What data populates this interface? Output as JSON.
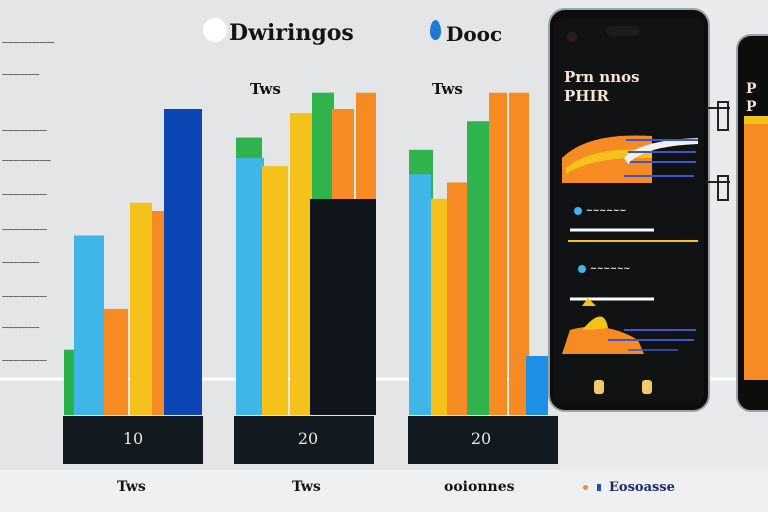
{
  "header": {
    "title_left": "Dwiringos",
    "title_right": "Dooc"
  },
  "gridline_labels": [
    "~~~~~~~~~~~~~~",
    "~~~~~~~~~~",
    "~~~~~~~~~~~~",
    "~~~~~~~~~~~~~",
    "~~~~~~~~~~~~",
    "~~~~~~~~~~~~",
    "~~~~~~~~~~",
    "~~~~~~~~~~~~",
    "~~~~~~~~~~",
    "~~~~~~~~~~~~"
  ],
  "bar_groups": [
    {
      "top_label": "",
      "base_value": "10",
      "bottom_label": "Tws",
      "bars": [
        {
          "color": "#27b24a",
          "value": 32
        },
        {
          "color": "#3fb5e8",
          "value": 88
        },
        {
          "color": "#f58b22",
          "value": 52
        },
        {
          "color": "#2fb34d",
          "value": 48
        },
        {
          "color": "#f5c21b",
          "value": 104
        },
        {
          "color": "#f58b22",
          "value": 100
        },
        {
          "color": "#0c46b5",
          "value": 150
        }
      ]
    },
    {
      "top_label": "Tws",
      "base_value": "20",
      "bottom_label": "Tws",
      "bars": [
        {
          "color": "#2fb34d",
          "value": 136
        },
        {
          "color": "#3fb5e8",
          "value": 126
        },
        {
          "color": "#f5c21b",
          "value": 122
        },
        {
          "color": "#f5c21b",
          "value": 148
        },
        {
          "color": "#2fb34d",
          "value": 158
        },
        {
          "color": "#f58b22",
          "value": 150
        },
        {
          "color": "#f58b22",
          "value": 158
        }
      ]
    },
    {
      "top_label": "Tws",
      "base_value": "20",
      "bottom_label": "ooionnes",
      "bars": [
        {
          "color": "#2fb34d",
          "value": 130
        },
        {
          "color": "#3fb5e8",
          "value": 118
        },
        {
          "color": "#f5c21b",
          "value": 106
        },
        {
          "color": "#f58b22",
          "value": 114
        },
        {
          "color": "#2fb34d",
          "value": 144
        },
        {
          "color": "#f58b22",
          "value": 158
        },
        {
          "color": "#f58b22",
          "value": 158
        }
      ]
    }
  ],
  "legend_bottom_right": "Eosoasse",
  "phone": {
    "title_line1": "Prn nnos",
    "title_line2": "PHIR",
    "rows": [
      {
        "label": "~~~~~~"
      },
      {
        "label": "~~~~~~"
      }
    ]
  },
  "phone2": {
    "title_line1": "P",
    "title_line2": "P"
  },
  "colors": {
    "background": "#e8eaeb",
    "green": "#2fb34d",
    "blue": "#3fb5e8",
    "orange": "#f58b22",
    "yellow": "#f5c21b",
    "navy": "#0c46b5",
    "phone_body": "#0d0d0d"
  }
}
